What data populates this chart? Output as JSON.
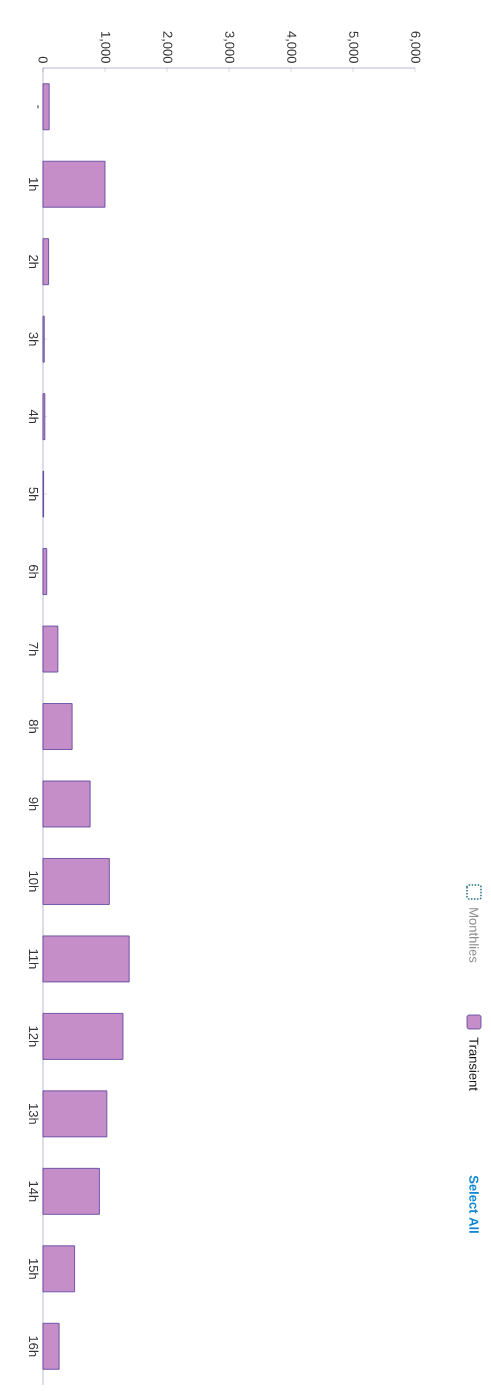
{
  "chart_data": {
    "type": "bar",
    "orientation": "horizontal",
    "categories": [
      "-",
      "1h",
      "2h",
      "3h",
      "4h",
      "5h",
      "6h",
      "7h",
      "8h",
      "9h",
      "10h",
      "11h",
      "12h",
      "13h",
      "14h",
      "15h",
      "16h"
    ],
    "series": [
      {
        "name": "Monthlies",
        "color": "#1f6f7d",
        "values": [
          null,
          null,
          null,
          null,
          null,
          null,
          null,
          null,
          null,
          null,
          null,
          null,
          null,
          null,
          null,
          null,
          null
        ]
      },
      {
        "name": "Transient",
        "color": "#c68ec9",
        "values": [
          100,
          1000,
          90,
          20,
          30,
          10,
          60,
          240,
          470,
          760,
          1070,
          1390,
          1290,
          1030,
          910,
          510,
          260
        ]
      }
    ],
    "xlim": [
      0,
      6000
    ],
    "xticks": [
      0,
      {
        "value": 1000,
        "label": "1,000"
      },
      {
        "value": 2000,
        "label": "2,000"
      },
      {
        "value": 3000,
        "label": "3,000"
      },
      {
        "value": 4000,
        "label": "4,000"
      },
      {
        "value": 5000,
        "label": "5,000"
      },
      {
        "value": 6000,
        "label": "6,000"
      }
    ],
    "legend": "right",
    "annotations": [
      "Select All"
    ]
  }
}
